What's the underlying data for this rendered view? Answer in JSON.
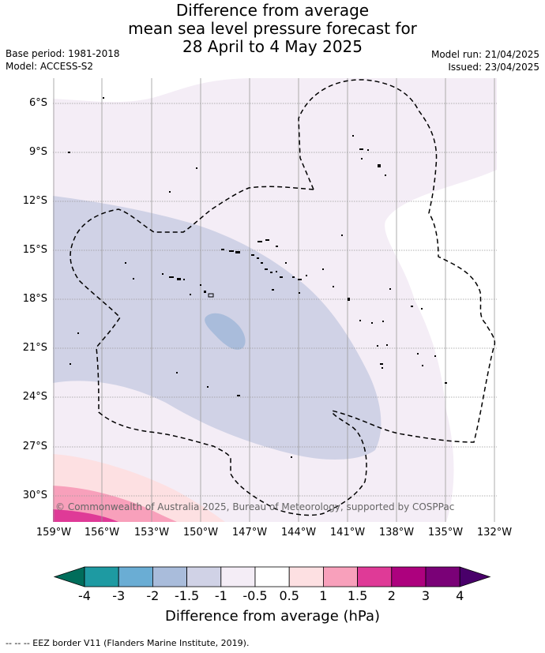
{
  "title": {
    "line1": "Difference from average",
    "line2": "mean sea level pressure forecast for",
    "line3": "28 April to 4 May 2025"
  },
  "meta_left": {
    "base_period": "Base period: 1981-2018",
    "model": "Model: ACCESS-S2"
  },
  "meta_right": {
    "model_run": "Model run: 21/04/2025",
    "issued": "Issued: 23/04/2025"
  },
  "map": {
    "lat_labels": [
      "6°S",
      "9°S",
      "12°S",
      "15°S",
      "18°S",
      "21°S",
      "24°S",
      "27°S",
      "30°S"
    ],
    "lon_labels": [
      "159°W",
      "156°W",
      "153°W",
      "150°W",
      "147°W",
      "144°W",
      "141°W",
      "138°W",
      "135°W",
      "132°W"
    ],
    "copyright": "© Commonwealth of Australia 2025, Bureau of Meteorology, supported by COSPPac",
    "eez_line_style": "dashed",
    "colors": {
      "neg_0_5_to_1": "#f4edf6",
      "neg_1_to_1_5": "#d0d2e6",
      "neg_1_5_to_2": "#a9bcdb",
      "pos_0_5_to_1": "#fde0e2",
      "pos_1_to_1_5": "#f8a0bb",
      "pos_1_5_to_2": "#df3a97"
    }
  },
  "colorbar": {
    "labels": [
      "-4",
      "-3",
      "-2",
      "-1.5",
      "-1",
      "-0.5",
      "0.5",
      "1",
      "1.5",
      "2",
      "3",
      "4"
    ],
    "colors": [
      "#006d5b",
      "#1e9aa2",
      "#6aadd4",
      "#a9bcdb",
      "#d0d2e6",
      "#f4edf6",
      "#ffffff",
      "#fde0e2",
      "#f8a0bb",
      "#df3a97",
      "#ad017e",
      "#7a0177",
      "#49006a"
    ],
    "title": "Difference from average (hPa)"
  },
  "footer": "--  --  -- EEZ border V11 (Flanders Marine Institute, 2019)."
}
